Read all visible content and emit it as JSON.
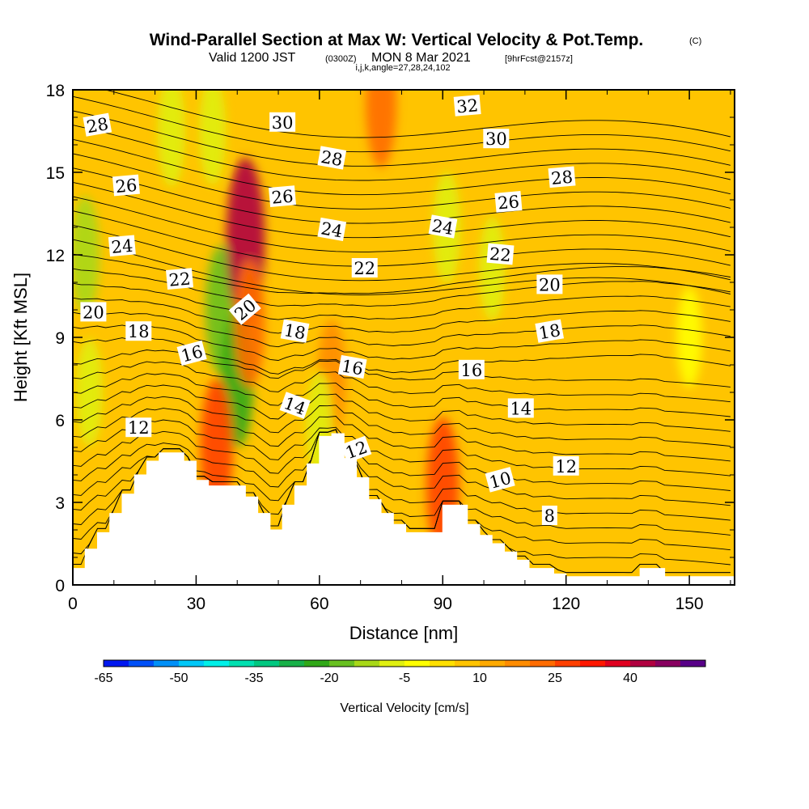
{
  "title": {
    "main": "Wind-Parallel Section at Max W: Vertical Velocity & Pot.Temp.",
    "mark": "(C)",
    "valid_a": "Valid 1200 JST",
    "valid_b": "(0300Z)",
    "valid_c": "MON 8 Mar 2021",
    "valid_d": "[9hrFcst@2157z]",
    "indices": "i,j,k,angle=27,28,24,102"
  },
  "colorbar": {
    "label": "Vertical Velocity [cm/s]",
    "tick_labels": [
      "-65",
      "-50",
      "-35",
      "-20",
      "-5",
      "10",
      "25",
      "40"
    ],
    "colors": [
      "#0018f0",
      "#0050f8",
      "#0090f8",
      "#00c8f8",
      "#00f0e8",
      "#00e0b0",
      "#00c880",
      "#18b048",
      "#30a818",
      "#68c020",
      "#a8d818",
      "#e0f010",
      "#ffff00",
      "#ffe000",
      "#ffc400",
      "#ffaa00",
      "#ff8c00",
      "#ff6c00",
      "#ff4000",
      "#ff1800",
      "#e00020",
      "#b00040",
      "#880060",
      "#580088"
    ]
  },
  "chart_data": {
    "type": "heatmap",
    "title": "Wind-Parallel Section at Max W: Vertical Velocity & Pot.Temp.",
    "xlabel": "Distance [nm]",
    "ylabel": "Height [Kft MSL]",
    "xlim": [
      0,
      161
    ],
    "ylim": [
      0,
      18
    ],
    "x_ticks": [
      0,
      30,
      60,
      90,
      120,
      150
    ],
    "y_ticks": [
      0,
      3,
      6,
      9,
      12,
      15,
      18
    ],
    "fill_variable": "Vertical Velocity [cm/s]",
    "contour_variable": "Potential Temperature",
    "terrain_profile": {
      "x": [
        0,
        3,
        6,
        9,
        12,
        15,
        18,
        21,
        24,
        27,
        30,
        33,
        36,
        39,
        42,
        45,
        48,
        51,
        54,
        57,
        60,
        63,
        66,
        69,
        72,
        75,
        78,
        81,
        84,
        87,
        90,
        93,
        96,
        99,
        102,
        105,
        108,
        111,
        114,
        117,
        120,
        123,
        126,
        129,
        132,
        135,
        138,
        141,
        144,
        147,
        150,
        153,
        156,
        161
      ],
      "height_kft": [
        0.6,
        1.3,
        1.9,
        2.6,
        3.3,
        4.0,
        4.5,
        4.8,
        4.8,
        4.5,
        3.8,
        3.6,
        3.6,
        3.6,
        3.2,
        2.6,
        2.0,
        2.9,
        3.6,
        4.4,
        5.4,
        5.5,
        4.6,
        3.9,
        3.1,
        2.6,
        2.2,
        1.9,
        1.9,
        1.9,
        2.9,
        2.9,
        2.2,
        1.8,
        1.5,
        1.2,
        0.9,
        0.6,
        0.6,
        0.4,
        0.3,
        0.3,
        0.3,
        0.3,
        0.3,
        0.3,
        0.6,
        0.6,
        0.3,
        0.3,
        0.3,
        0.3,
        0.3,
        0.3
      ]
    },
    "vertical_velocity_features_cm_s": [
      {
        "x": 3,
        "y": 12.0,
        "w": -15
      },
      {
        "x": 4,
        "y": 7.0,
        "w": -10
      },
      {
        "x": 24,
        "y": 16.5,
        "w": -12
      },
      {
        "x": 36,
        "y": 10.0,
        "w": -20
      },
      {
        "x": 34,
        "y": 16.5,
        "w": -10
      },
      {
        "x": 40,
        "y": 7.5,
        "w": -25
      },
      {
        "x": 42,
        "y": 12.5,
        "w": 40
      },
      {
        "x": 43,
        "y": 9.5,
        "w": 20
      },
      {
        "x": 35,
        "y": 5.0,
        "w": 25
      },
      {
        "x": 63,
        "y": 7.5,
        "w": 15
      },
      {
        "x": 75,
        "y": 17.5,
        "w": 20
      },
      {
        "x": 90,
        "y": 3.6,
        "w": 25
      },
      {
        "x": 91,
        "y": 13.0,
        "w": -12
      },
      {
        "x": 102,
        "y": 11.5,
        "w": -8
      },
      {
        "x": 60,
        "y": 5.8,
        "w": -10
      },
      {
        "x": 150,
        "y": 9.0,
        "w": -6
      }
    ],
    "potential_temperature_labels": [
      {
        "text": "28",
        "x": 6,
        "y": 16.7,
        "angle": -10
      },
      {
        "text": "26",
        "x": 13,
        "y": 14.5,
        "angle": -5
      },
      {
        "text": "24",
        "x": 12,
        "y": 12.3,
        "angle": -5
      },
      {
        "text": "22",
        "x": 26,
        "y": 11.1,
        "angle": -5
      },
      {
        "text": "20",
        "x": 5,
        "y": 9.9,
        "angle": 0
      },
      {
        "text": "18",
        "x": 16,
        "y": 9.2,
        "angle": 0
      },
      {
        "text": "16",
        "x": 29,
        "y": 8.4,
        "angle": -15
      },
      {
        "text": "12",
        "x": 16,
        "y": 5.7,
        "angle": 0
      },
      {
        "text": "20",
        "x": 42,
        "y": 10.0,
        "angle": -40
      },
      {
        "text": "30",
        "x": 51,
        "y": 16.8,
        "angle": 0
      },
      {
        "text": "28",
        "x": 63,
        "y": 15.5,
        "angle": 10
      },
      {
        "text": "26",
        "x": 51,
        "y": 14.1,
        "angle": -5
      },
      {
        "text": "24",
        "x": 63,
        "y": 12.9,
        "angle": 10
      },
      {
        "text": "22",
        "x": 71,
        "y": 11.5,
        "angle": 0
      },
      {
        "text": "18",
        "x": 54,
        "y": 9.2,
        "angle": 10
      },
      {
        "text": "16",
        "x": 68,
        "y": 7.9,
        "angle": 10
      },
      {
        "text": "14",
        "x": 54,
        "y": 6.5,
        "angle": 20
      },
      {
        "text": "12",
        "x": 69,
        "y": 4.9,
        "angle": -20
      },
      {
        "text": "32",
        "x": 96,
        "y": 17.4,
        "angle": -5
      },
      {
        "text": "30",
        "x": 103,
        "y": 16.2,
        "angle": 0
      },
      {
        "text": "28",
        "x": 119,
        "y": 14.8,
        "angle": -5
      },
      {
        "text": "26",
        "x": 106,
        "y": 13.9,
        "angle": -5
      },
      {
        "text": "24",
        "x": 90,
        "y": 13.0,
        "angle": 10
      },
      {
        "text": "22",
        "x": 104,
        "y": 12.0,
        "angle": 5
      },
      {
        "text": "20",
        "x": 116,
        "y": 10.9,
        "angle": 0
      },
      {
        "text": "18",
        "x": 116,
        "y": 9.2,
        "angle": -10
      },
      {
        "text": "16",
        "x": 97,
        "y": 7.8,
        "angle": 0
      },
      {
        "text": "14",
        "x": 109,
        "y": 6.4,
        "angle": 0
      },
      {
        "text": "12",
        "x": 120,
        "y": 4.3,
        "angle": 0
      },
      {
        "text": "10",
        "x": 104,
        "y": 3.8,
        "angle": -15
      },
      {
        "text": "8",
        "x": 116,
        "y": 2.5,
        "angle": 0
      }
    ]
  }
}
